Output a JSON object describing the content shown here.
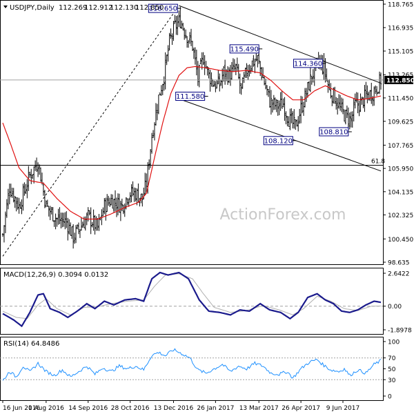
{
  "chart_data": [
    {
      "type": "candlestick",
      "panel": "price",
      "title": "USDJPY,Daily",
      "ohlc_header": {
        "open": "112.269",
        "high": "112.912",
        "low": "112.130",
        "close": "112.850"
      },
      "y_ticks": [
        "118.765",
        "116.935",
        "115.105",
        "113.265",
        "111.450",
        "109.625",
        "107.765",
        "105.950",
        "104.135",
        "102.325",
        "100.450",
        "98.635"
      ],
      "y_tick_values": [
        118.765,
        116.935,
        115.105,
        113.265,
        111.45,
        109.625,
        107.765,
        105.95,
        104.135,
        102.325,
        100.45,
        98.635
      ],
      "ylim": [
        98.635,
        118.765
      ],
      "current_price_label": "112.850",
      "current_price": 112.85,
      "fib_label": "61.8",
      "fib_level": 106.2,
      "watermark": "ActionForex.com",
      "annotations": [
        {
          "label": "118.650",
          "date_index": 130,
          "value": 118.65
        },
        {
          "label": "115.490",
          "date_index": 190,
          "value": 115.49
        },
        {
          "label": "114.360",
          "date_index": 237,
          "value": 114.36
        },
        {
          "label": "111.580",
          "date_index": 150,
          "value": 111.58
        },
        {
          "label": "108.120",
          "date_index": 215,
          "value": 108.12
        },
        {
          "label": "108.810",
          "date_index": 256,
          "value": 108.81
        }
      ],
      "upper_channel": {
        "from": {
          "i": 130,
          "v": 118.65
        },
        "to": {
          "i": 279,
          "v": 112.6
        }
      },
      "lower_channel": {
        "from": {
          "i": 128,
          "v": 111.45
        },
        "to": {
          "i": 279,
          "v": 105.75
        }
      },
      "rising_trendline": {
        "from": {
          "i": 0,
          "v": 99.1
        },
        "to": {
          "i": 130,
          "v": 118.65
        }
      },
      "series": [
        {
          "name": "MA",
          "color": "#e01010"
        }
      ]
    },
    {
      "type": "line",
      "panel": "macd",
      "label": "MACD(12,26,9) 0.3094 0.0132",
      "y_ticks": [
        "2.6422",
        "0.00",
        "-1.8978"
      ],
      "y_tick_values": [
        2.6422,
        0,
        -1.8978
      ],
      "ylim": [
        -1.8978,
        2.6422
      ],
      "series": [
        {
          "name": "MACD",
          "color": "#1a1a8c"
        },
        {
          "name": "Signal",
          "color": "#b0b0b0"
        }
      ],
      "anchors_macd": [
        [
          0,
          -0.6
        ],
        [
          8,
          -1.1
        ],
        [
          14,
          -1.6
        ],
        [
          20,
          -0.5
        ],
        [
          26,
          0.9
        ],
        [
          30,
          1.0
        ],
        [
          35,
          -0.2
        ],
        [
          42,
          -0.5
        ],
        [
          48,
          -0.9
        ],
        [
          55,
          -0.4
        ],
        [
          62,
          0.2
        ],
        [
          68,
          -0.2
        ],
        [
          75,
          0.4
        ],
        [
          82,
          0.1
        ],
        [
          90,
          0.5
        ],
        [
          98,
          0.6
        ],
        [
          104,
          0.4
        ],
        [
          110,
          2.2
        ],
        [
          116,
          2.7
        ],
        [
          122,
          2.5
        ],
        [
          130,
          2.7
        ],
        [
          137,
          2.2
        ],
        [
          145,
          0.5
        ],
        [
          152,
          -0.4
        ],
        [
          160,
          -0.5
        ],
        [
          168,
          -0.7
        ],
        [
          175,
          -0.3
        ],
        [
          182,
          -0.4
        ],
        [
          190,
          0.2
        ],
        [
          197,
          -0.3
        ],
        [
          205,
          -0.5
        ],
        [
          212,
          -1.0
        ],
        [
          218,
          -0.5
        ],
        [
          225,
          0.7
        ],
        [
          232,
          1.0
        ],
        [
          238,
          0.5
        ],
        [
          244,
          0.2
        ],
        [
          250,
          -0.4
        ],
        [
          256,
          -0.5
        ],
        [
          262,
          -0.3
        ],
        [
          268,
          0.1
        ],
        [
          274,
          0.4
        ],
        [
          279,
          0.31
        ]
      ],
      "anchors_signal": [
        [
          0,
          -0.4
        ],
        [
          10,
          -0.9
        ],
        [
          18,
          -1.0
        ],
        [
          26,
          0.1
        ],
        [
          32,
          0.6
        ],
        [
          40,
          -0.2
        ],
        [
          50,
          -0.7
        ],
        [
          60,
          -0.1
        ],
        [
          70,
          -0.05
        ],
        [
          80,
          0.2
        ],
        [
          92,
          0.4
        ],
        [
          104,
          0.5
        ],
        [
          112,
          1.6
        ],
        [
          120,
          2.5
        ],
        [
          130,
          2.6
        ],
        [
          140,
          2.2
        ],
        [
          148,
          1.0
        ],
        [
          156,
          -0.1
        ],
        [
          168,
          -0.5
        ],
        [
          180,
          -0.35
        ],
        [
          192,
          0.05
        ],
        [
          204,
          -0.3
        ],
        [
          214,
          -0.7
        ],
        [
          222,
          -0.2
        ],
        [
          232,
          0.8
        ],
        [
          242,
          0.4
        ],
        [
          252,
          -0.2
        ],
        [
          262,
          -0.35
        ],
        [
          272,
          0.0
        ],
        [
          279,
          0.013
        ]
      ]
    },
    {
      "type": "line",
      "panel": "rsi",
      "label": "RSI(14) 64.8486",
      "y_ticks": [
        "100",
        "70",
        "50",
        "30",
        "0"
      ],
      "y_tick_values": [
        100,
        70,
        50,
        30,
        0
      ],
      "ylim": [
        0,
        100
      ],
      "dotted_levels": [
        70,
        30
      ],
      "series": [
        {
          "name": "RSI",
          "color": "#1e90ff"
        }
      ],
      "anchors_rsi": [
        [
          0,
          28
        ],
        [
          5,
          45
        ],
        [
          10,
          35
        ],
        [
          15,
          55
        ],
        [
          20,
          44
        ],
        [
          26,
          60
        ],
        [
          32,
          45
        ],
        [
          38,
          38
        ],
        [
          44,
          48
        ],
        [
          50,
          35
        ],
        [
          56,
          45
        ],
        [
          62,
          55
        ],
        [
          68,
          40
        ],
        [
          74,
          52
        ],
        [
          80,
          45
        ],
        [
          86,
          55
        ],
        [
          92,
          50
        ],
        [
          98,
          55
        ],
        [
          104,
          48
        ],
        [
          110,
          75
        ],
        [
          115,
          80
        ],
        [
          120,
          74
        ],
        [
          126,
          85
        ],
        [
          132,
          78
        ],
        [
          138,
          70
        ],
        [
          144,
          48
        ],
        [
          150,
          42
        ],
        [
          156,
          50
        ],
        [
          162,
          58
        ],
        [
          168,
          45
        ],
        [
          174,
          55
        ],
        [
          180,
          50
        ],
        [
          186,
          60
        ],
        [
          192,
          55
        ],
        [
          198,
          42
        ],
        [
          204,
          40
        ],
        [
          210,
          45
        ],
        [
          214,
          33
        ],
        [
          220,
          50
        ],
        [
          226,
          62
        ],
        [
          232,
          67
        ],
        [
          236,
          58
        ],
        [
          242,
          48
        ],
        [
          248,
          45
        ],
        [
          252,
          50
        ],
        [
          256,
          38
        ],
        [
          262,
          48
        ],
        [
          268,
          42
        ],
        [
          274,
          58
        ],
        [
          279,
          64.85
        ]
      ]
    }
  ],
  "x_axis": {
    "labels": [
      "16 Jun 2016",
      "1 Aug 2016",
      "14 Sep 2016",
      "28 Oct 2016",
      "13 Dec 2016",
      "26 Jan 2017",
      "13 Mar 2017",
      "26 Apr 2017",
      "9 Jun 2017"
    ],
    "label_indices": [
      0,
      32,
      63,
      94,
      126,
      157,
      189,
      220,
      251
    ],
    "bars": 280
  },
  "price_path_anchors": [
    [
      0,
      100.8
    ],
    [
      5,
      104.5
    ],
    [
      12,
      103.0
    ],
    [
      20,
      105.4
    ],
    [
      26,
      106.5
    ],
    [
      32,
      103.0
    ],
    [
      40,
      102.0
    ],
    [
      47,
      101.8
    ],
    [
      52,
      100.6
    ],
    [
      58,
      101.5
    ],
    [
      63,
      102.2
    ],
    [
      70,
      101.3
    ],
    [
      75,
      103.0
    ],
    [
      80,
      103.5
    ],
    [
      88,
      103.0
    ],
    [
      93,
      104.0
    ],
    [
      98,
      104.0
    ],
    [
      103,
      103.6
    ],
    [
      106,
      104.8
    ],
    [
      110,
      108.5
    ],
    [
      115,
      111.5
    ],
    [
      119,
      113.2
    ],
    [
      123,
      115.8
    ],
    [
      127,
      117.0
    ],
    [
      131,
      117.5
    ],
    [
      135,
      116.5
    ],
    [
      140,
      115.5
    ],
    [
      144,
      113.0
    ],
    [
      148,
      114.6
    ],
    [
      152,
      113.2
    ],
    [
      156,
      112.5
    ],
    [
      160,
      112.5
    ],
    [
      163,
      113.5
    ],
    [
      167,
      113.2
    ],
    [
      172,
      113.8
    ],
    [
      176,
      112.0
    ],
    [
      180,
      113.6
    ],
    [
      184,
      114.2
    ],
    [
      188,
      114.5
    ],
    [
      192,
      113.0
    ],
    [
      197,
      111.2
    ],
    [
      202,
      110.8
    ],
    [
      207,
      111.0
    ],
    [
      211,
      109.8
    ],
    [
      216,
      109.2
    ],
    [
      220,
      110.6
    ],
    [
      224,
      111.8
    ],
    [
      228,
      113.2
    ],
    [
      233,
      114.2
    ],
    [
      237,
      113.8
    ],
    [
      241,
      112.0
    ],
    [
      245,
      111.5
    ],
    [
      249,
      110.6
    ],
    [
      253,
      110.0
    ],
    [
      257,
      109.7
    ],
    [
      260,
      110.9
    ],
    [
      264,
      111.0
    ],
    [
      268,
      111.6
    ],
    [
      272,
      111.8
    ],
    [
      276,
      112.3
    ],
    [
      279,
      112.85
    ]
  ],
  "ma_anchors": [
    [
      0,
      109.5
    ],
    [
      6,
      107.8
    ],
    [
      12,
      106.0
    ],
    [
      20,
      105.0
    ],
    [
      30,
      104.8
    ],
    [
      40,
      103.6
    ],
    [
      50,
      102.6
    ],
    [
      60,
      102.0
    ],
    [
      70,
      102.0
    ],
    [
      80,
      102.4
    ],
    [
      90,
      102.9
    ],
    [
      100,
      103.3
    ],
    [
      106,
      104.0
    ],
    [
      112,
      106.8
    ],
    [
      118,
      109.5
    ],
    [
      124,
      111.8
    ],
    [
      130,
      113.2
    ],
    [
      136,
      113.8
    ],
    [
      142,
      113.9
    ],
    [
      150,
      113.8
    ],
    [
      160,
      113.6
    ],
    [
      170,
      113.5
    ],
    [
      180,
      113.6
    ],
    [
      190,
      113.4
    ],
    [
      198,
      112.8
    ],
    [
      206,
      112.0
    ],
    [
      214,
      111.3
    ],
    [
      222,
      111.3
    ],
    [
      230,
      112.0
    ],
    [
      238,
      112.4
    ],
    [
      246,
      112.0
    ],
    [
      254,
      111.6
    ],
    [
      262,
      111.3
    ],
    [
      270,
      111.4
    ],
    [
      279,
      111.6
    ]
  ]
}
